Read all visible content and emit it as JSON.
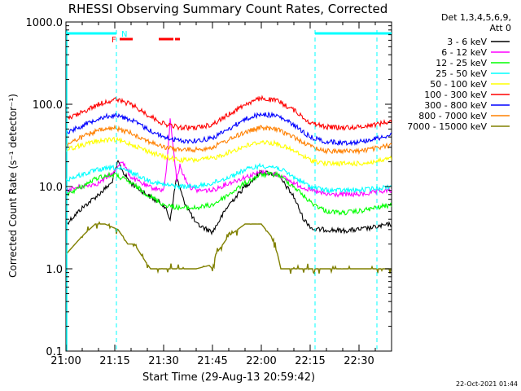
{
  "chart_data": {
    "type": "line",
    "title": "RHESSI Observing Summary Count Rates, Corrected",
    "xlabel": "Start Time (29-Aug-13 20:59:42)",
    "ylabel": "Corrected Count Rate (s⁻¹ detector⁻¹)",
    "yscale": "log",
    "ylim": [
      0.1,
      1000.0
    ],
    "xlim_minutes": [
      0,
      100
    ],
    "x_tick_labels": [
      "21:00",
      "21:15",
      "21:30",
      "21:45",
      "22:00",
      "22:15",
      "22:30"
    ],
    "x_tick_minutes": [
      0,
      15,
      30,
      45,
      60,
      75,
      90
    ],
    "y_tick_labels": [
      "0.1",
      "1.0",
      "10.0",
      "100.0",
      "1000.0"
    ],
    "y_tick_values": [
      0.1,
      1.0,
      10.0,
      100.0,
      1000.0
    ],
    "legend_header": [
      "Det 1,3,4,5,6,9,",
      "Att 0"
    ],
    "legend_placement": "right, outside plot",
    "timestamp": "22-Oct-2021 01:44",
    "annotations": {
      "night_label": "N",
      "flare_label": "F",
      "night_intervals_minutes": [
        [
          0,
          15.5
        ],
        [
          76.5,
          100
        ]
      ],
      "flare_intervals_minutes": [
        [
          16.5,
          20.5
        ],
        [
          28.5,
          33
        ],
        [
          33.5,
          35
        ]
      ],
      "night_guide_lines_minutes": [
        15.5,
        76.5,
        95.5
      ]
    },
    "series": [
      {
        "name": "3 - 6 keV",
        "color": "#000000",
        "x": [
          0,
          5,
          10,
          14,
          16,
          18,
          20,
          23,
          27,
          30,
          32,
          34,
          36,
          40,
          45,
          50,
          55,
          60,
          65,
          70,
          73,
          76,
          80,
          85,
          90,
          95,
          100
        ],
        "values": [
          3.5,
          5.5,
          8.0,
          11.0,
          20.0,
          14.0,
          11.0,
          9.0,
          7.0,
          6.0,
          4.0,
          13.0,
          7.0,
          3.5,
          2.8,
          6.0,
          10.0,
          15.0,
          14.0,
          7.5,
          4.0,
          3.0,
          3.0,
          2.9,
          3.0,
          3.2,
          3.5
        ]
      },
      {
        "name": "6 - 12 keV",
        "color": "#ff00ff",
        "x": [
          0,
          5,
          10,
          15,
          17,
          20,
          25,
          30,
          31,
          32,
          33,
          34,
          35,
          36,
          38,
          40,
          45,
          50,
          55,
          60,
          65,
          70,
          75,
          80,
          85,
          90,
          95,
          100
        ],
        "values": [
          9.0,
          10.0,
          11.0,
          15.0,
          21.0,
          13.0,
          10.0,
          9.0,
          18.0,
          65.0,
          30.0,
          12.0,
          18.0,
          14.0,
          10.0,
          9.0,
          9.0,
          11.0,
          13.0,
          15.0,
          14.0,
          11.0,
          9.0,
          8.0,
          8.0,
          8.0,
          8.5,
          9.0
        ]
      },
      {
        "name": "12 - 25 keV",
        "color": "#00ff00",
        "x": [
          0,
          5,
          10,
          15,
          20,
          25,
          30,
          35,
          40,
          45,
          50,
          55,
          60,
          65,
          70,
          75,
          80,
          85,
          90,
          95,
          100
        ],
        "values": [
          8.0,
          10.0,
          13.0,
          14.0,
          11.0,
          8.0,
          6.0,
          5.5,
          5.5,
          6.0,
          8.0,
          11.0,
          14.0,
          14.0,
          10.0,
          6.5,
          5.0,
          4.8,
          5.0,
          5.5,
          6.0
        ]
      },
      {
        "name": "25 - 50 keV",
        "color": "#00ffff",
        "x": [
          0,
          5,
          10,
          15,
          20,
          25,
          30,
          35,
          40,
          45,
          50,
          55,
          60,
          65,
          70,
          75,
          80,
          85,
          90,
          95,
          100
        ],
        "values": [
          12.0,
          14.0,
          16.0,
          17.0,
          15.0,
          12.0,
          10.5,
          10.0,
          10.0,
          11.0,
          13.0,
          16.0,
          18.0,
          17.0,
          13.0,
          10.0,
          9.0,
          9.0,
          9.0,
          9.5,
          10.0
        ]
      },
      {
        "name": "50 - 100 keV",
        "color": "#ffff00",
        "x": [
          0,
          5,
          10,
          15,
          20,
          25,
          30,
          35,
          40,
          45,
          50,
          55,
          60,
          65,
          70,
          75,
          80,
          85,
          90,
          95,
          100
        ],
        "values": [
          28.0,
          32.0,
          36.0,
          37.0,
          33.0,
          27.0,
          23.0,
          21.0,
          21.0,
          22.0,
          26.0,
          31.0,
          35.0,
          33.0,
          27.0,
          21.0,
          19.0,
          19.0,
          19.0,
          20.0,
          22.0
        ]
      },
      {
        "name": "100 - 300 keV",
        "color": "#ff0000",
        "x": [
          0,
          5,
          10,
          15,
          20,
          25,
          30,
          35,
          40,
          45,
          50,
          55,
          60,
          65,
          70,
          75,
          80,
          85,
          90,
          95,
          100
        ],
        "values": [
          65.0,
          80.0,
          100.0,
          115.0,
          100.0,
          75.0,
          58.0,
          52.0,
          52.0,
          57.0,
          75.0,
          100.0,
          118.0,
          110.0,
          85.0,
          60.0,
          53.0,
          52.0,
          53.0,
          57.0,
          62.0
        ]
      },
      {
        "name": "300 - 800 keV",
        "color": "#0000ff",
        "x": [
          0,
          5,
          10,
          15,
          20,
          25,
          30,
          35,
          40,
          45,
          50,
          55,
          60,
          65,
          70,
          75,
          80,
          85,
          90,
          95,
          100
        ],
        "values": [
          45.0,
          55.0,
          68.0,
          74.0,
          65.0,
          50.0,
          40.0,
          36.0,
          36.0,
          39.0,
          50.0,
          66.0,
          76.0,
          72.0,
          56.0,
          40.0,
          35.0,
          34.0,
          35.0,
          38.0,
          43.0
        ]
      },
      {
        "name": "800 - 7000 keV",
        "color": "#ff8000",
        "x": [
          0,
          5,
          10,
          15,
          20,
          25,
          30,
          35,
          40,
          45,
          50,
          55,
          60,
          65,
          70,
          75,
          80,
          85,
          90,
          95,
          100
        ],
        "values": [
          32.0,
          40.0,
          48.0,
          51.0,
          45.0,
          36.0,
          30.0,
          28.0,
          28.0,
          30.0,
          37.0,
          46.0,
          52.0,
          49.0,
          40.0,
          31.0,
          27.0,
          27.0,
          27.0,
          29.0,
          32.0
        ]
      },
      {
        "name": "7000 - 15000 keV",
        "color": "#808000",
        "x": [
          0,
          5,
          9,
          12,
          16,
          19,
          21,
          24,
          26,
          27,
          40,
          44,
          45,
          46,
          50,
          55,
          60,
          63,
          65,
          66,
          67,
          95,
          100
        ],
        "values": [
          1.5,
          2.5,
          3.5,
          3.5,
          3.0,
          2.0,
          2.0,
          1.3,
          1.0,
          1.0,
          1.0,
          1.1,
          1.0,
          1.5,
          2.5,
          3.5,
          3.5,
          2.5,
          1.5,
          1.0,
          1.0,
          1.0,
          1.0
        ]
      }
    ]
  }
}
